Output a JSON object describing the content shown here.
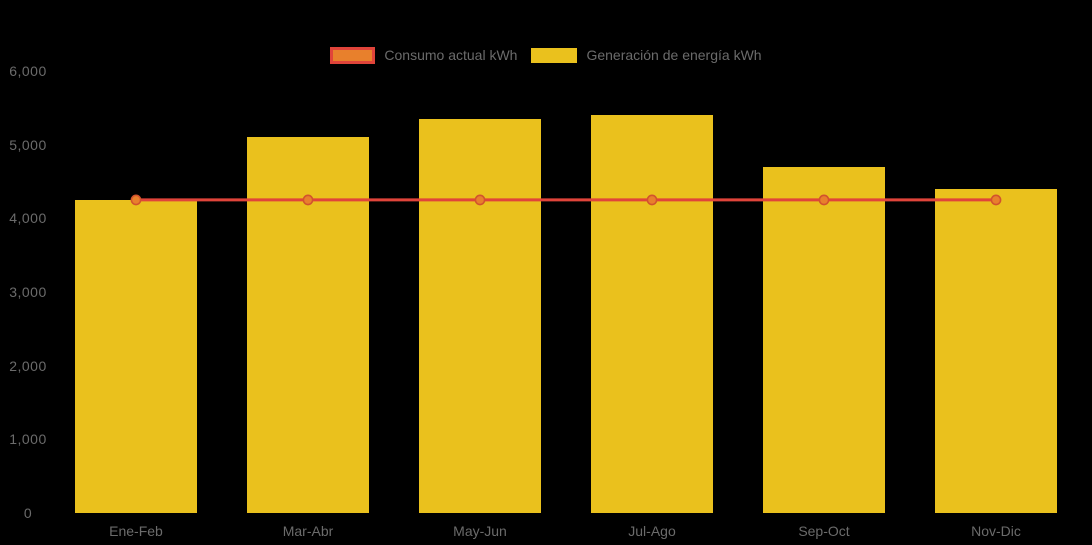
{
  "background_color": "#000000",
  "text_color": "#6B6B6B",
  "chart_data": {
    "type": "combo",
    "title": "",
    "categories": [
      "Ene-Feb",
      "Mar-Abr",
      "May-Jun",
      "Jul-Ago",
      "Sep-Oct",
      "Nov-Dic"
    ],
    "series": [
      {
        "name": "Consumo actual kWh",
        "type": "line",
        "color": "#E0443A",
        "marker_color": "#E8802C",
        "marker_border_color": "#D2532D",
        "values": [
          4250,
          4250,
          4250,
          4250,
          4250,
          4250
        ]
      },
      {
        "name": "Generación de energía kWh",
        "type": "bar",
        "color": "#EAC11D",
        "values": [
          4250,
          5100,
          5350,
          5400,
          4700,
          4400
        ]
      }
    ],
    "xlabel": "",
    "ylabel": "",
    "ylim": [
      0,
      6000
    ],
    "y_ticks": [
      "0",
      "1,000",
      "2,000",
      "3,000",
      "4,000",
      "5,000",
      "6,000"
    ],
    "grid": false,
    "legend_position": "top"
  }
}
